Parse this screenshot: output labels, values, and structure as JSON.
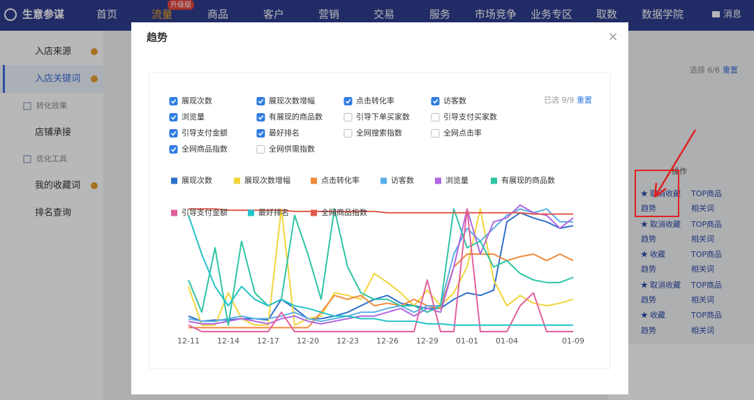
{
  "nav": {
    "logo": "生意参谋",
    "badge": "升级版",
    "message": "消息",
    "items": [
      "首页",
      "流量",
      "商品",
      "客户",
      "营销",
      "交易",
      "服务",
      "市场竞争",
      "业务专区",
      "取数",
      "数据学院"
    ]
  },
  "sidebar": {
    "items": [
      {
        "label": "入店来源",
        "group": false,
        "dot": true,
        "active": false
      },
      {
        "label": "入店关键词",
        "group": false,
        "dot": true,
        "active": true
      },
      {
        "label": "转化效果",
        "group": true,
        "dot": false,
        "active": false
      },
      {
        "label": "店铺承接",
        "group": false,
        "dot": false,
        "active": false
      },
      {
        "label": "优化工具",
        "group": true,
        "dot": false,
        "active": false
      },
      {
        "label": "我的收藏词",
        "group": false,
        "dot": true,
        "active": false
      },
      {
        "label": "排名查询",
        "group": false,
        "dot": false,
        "active": false
      }
    ]
  },
  "right_panel": {
    "selected": "选择 6/6",
    "reset": "重置",
    "column": "操作",
    "rows": [
      [
        "取消收藏",
        "TOP商品"
      ],
      [
        "趋势",
        "相关词"
      ],
      [
        "取消收藏",
        "TOP商品"
      ],
      [
        "趋势",
        "相关词"
      ],
      [
        "收藏",
        "TOP商品"
      ],
      [
        "趋势",
        "相关词"
      ],
      [
        "取消收藏",
        "TOP商品"
      ],
      [
        "趋势",
        "相关词"
      ],
      [
        "收藏",
        "TOP商品"
      ],
      [
        "趋势",
        "相关词"
      ]
    ]
  },
  "modal": {
    "title": "趋势",
    "close": "×",
    "selected": "已选 9/9",
    "reset": "重置",
    "checkboxes": [
      {
        "label": "展现次数",
        "checked": true
      },
      {
        "label": "展现次数增幅",
        "checked": true
      },
      {
        "label": "点击转化率",
        "checked": true
      },
      {
        "label": "访客数",
        "checked": true
      },
      {
        "label": "浏览量",
        "checked": true
      },
      {
        "label": "有展现的商品数",
        "checked": true
      },
      {
        "label": "引导下单买家数",
        "checked": false
      },
      {
        "label": "引导支付买家数",
        "checked": false
      },
      {
        "label": "引导支付金额",
        "checked": true
      },
      {
        "label": "最好排名",
        "checked": true
      },
      {
        "label": "全网搜索指数",
        "checked": false
      },
      {
        "label": "全网点击率",
        "checked": false
      },
      {
        "label": "全网商品指数",
        "checked": true
      },
      {
        "label": "全网供需指数",
        "checked": false
      }
    ]
  },
  "chart_data": {
    "type": "line",
    "ylim": [
      0,
      100
    ],
    "categories": [
      "12-11",
      null,
      null,
      "12-14",
      null,
      null,
      "12-17",
      null,
      null,
      "12-20",
      null,
      null,
      "12-23",
      null,
      null,
      "12-26",
      null,
      null,
      "12-29",
      null,
      null,
      "01-01",
      null,
      null,
      "01-04",
      null,
      null,
      null,
      null,
      "01-09"
    ],
    "series": [
      {
        "name": "展现次数",
        "color": "#2b6fc9",
        "values": [
          12,
          8,
          9,
          9,
          10,
          10,
          9,
          25,
          18,
          10,
          10,
          12,
          15,
          20,
          25,
          28,
          22,
          20,
          18,
          18,
          25,
          30,
          28,
          32,
          85,
          92,
          88,
          85,
          80,
          82
        ]
      },
      {
        "name": "展现次数增幅",
        "color": "#f2d43a",
        "values": [
          35,
          5,
          5,
          30,
          10,
          5,
          5,
          95,
          5,
          10,
          12,
          30,
          28,
          25,
          45,
          38,
          30,
          20,
          32,
          20,
          30,
          50,
          95,
          40,
          20,
          28,
          22,
          20,
          22,
          25
        ]
      },
      {
        "name": "点击转化率",
        "color": "#ef8a3c",
        "values": [
          3,
          3,
          3,
          3,
          3,
          3,
          3,
          3,
          3,
          3,
          15,
          28,
          25,
          28,
          20,
          22,
          20,
          25,
          20,
          18,
          50,
          60,
          60,
          60,
          55,
          58,
          60,
          55,
          60,
          55
        ]
      },
      {
        "name": "访客数",
        "color": "#5aaee8",
        "values": [
          10,
          8,
          8,
          10,
          12,
          10,
          10,
          12,
          15,
          10,
          8,
          10,
          12,
          15,
          15,
          18,
          20,
          15,
          20,
          20,
          60,
          80,
          70,
          80,
          90,
          95,
          92,
          95,
          85,
          85
        ]
      },
      {
        "name": "浏览量",
        "color": "#b066e0",
        "values": [
          8,
          6,
          6,
          8,
          10,
          8,
          6,
          10,
          12,
          8,
          6,
          8,
          10,
          12,
          12,
          15,
          18,
          12,
          18,
          15,
          50,
          95,
          60,
          85,
          88,
          98,
          92,
          90,
          80,
          88
        ]
      },
      {
        "name": "有展现的商品数",
        "color": "#2cc4a4",
        "values": [
          40,
          15,
          65,
          5,
          70,
          30,
          20,
          25,
          90,
          60,
          25,
          95,
          50,
          30,
          25,
          25,
          20,
          20,
          15,
          20,
          95,
          65,
          70,
          50,
          55,
          45,
          40,
          38,
          38,
          42
        ]
      },
      {
        "name": "引导支付金额",
        "color": "#e0609c",
        "values": [
          5,
          0,
          0,
          0,
          0,
          0,
          0,
          15,
          0,
          0,
          0,
          0,
          0,
          0,
          0,
          0,
          0,
          0,
          40,
          0,
          0,
          95,
          0,
          0,
          0,
          20,
          30,
          0,
          0,
          0
        ]
      },
      {
        "name": "最好排名",
        "color": "#22c2c8",
        "values": [
          90,
          60,
          35,
          20,
          35,
          25,
          20,
          25,
          20,
          18,
          15,
          12,
          12,
          10,
          10,
          8,
          8,
          8,
          6,
          6,
          5,
          5,
          5,
          5,
          5,
          5,
          5,
          5,
          5,
          5
        ]
      },
      {
        "name": "全网商品指数",
        "color": "#e05a4a",
        "values": [
          95,
          95,
          95,
          94,
          94,
          94,
          94,
          94,
          93,
          93,
          93,
          93,
          93,
          93,
          93,
          92,
          92,
          92,
          92,
          92,
          92,
          92,
          92,
          92,
          92,
          92,
          91,
          91,
          91,
          91
        ]
      }
    ]
  }
}
